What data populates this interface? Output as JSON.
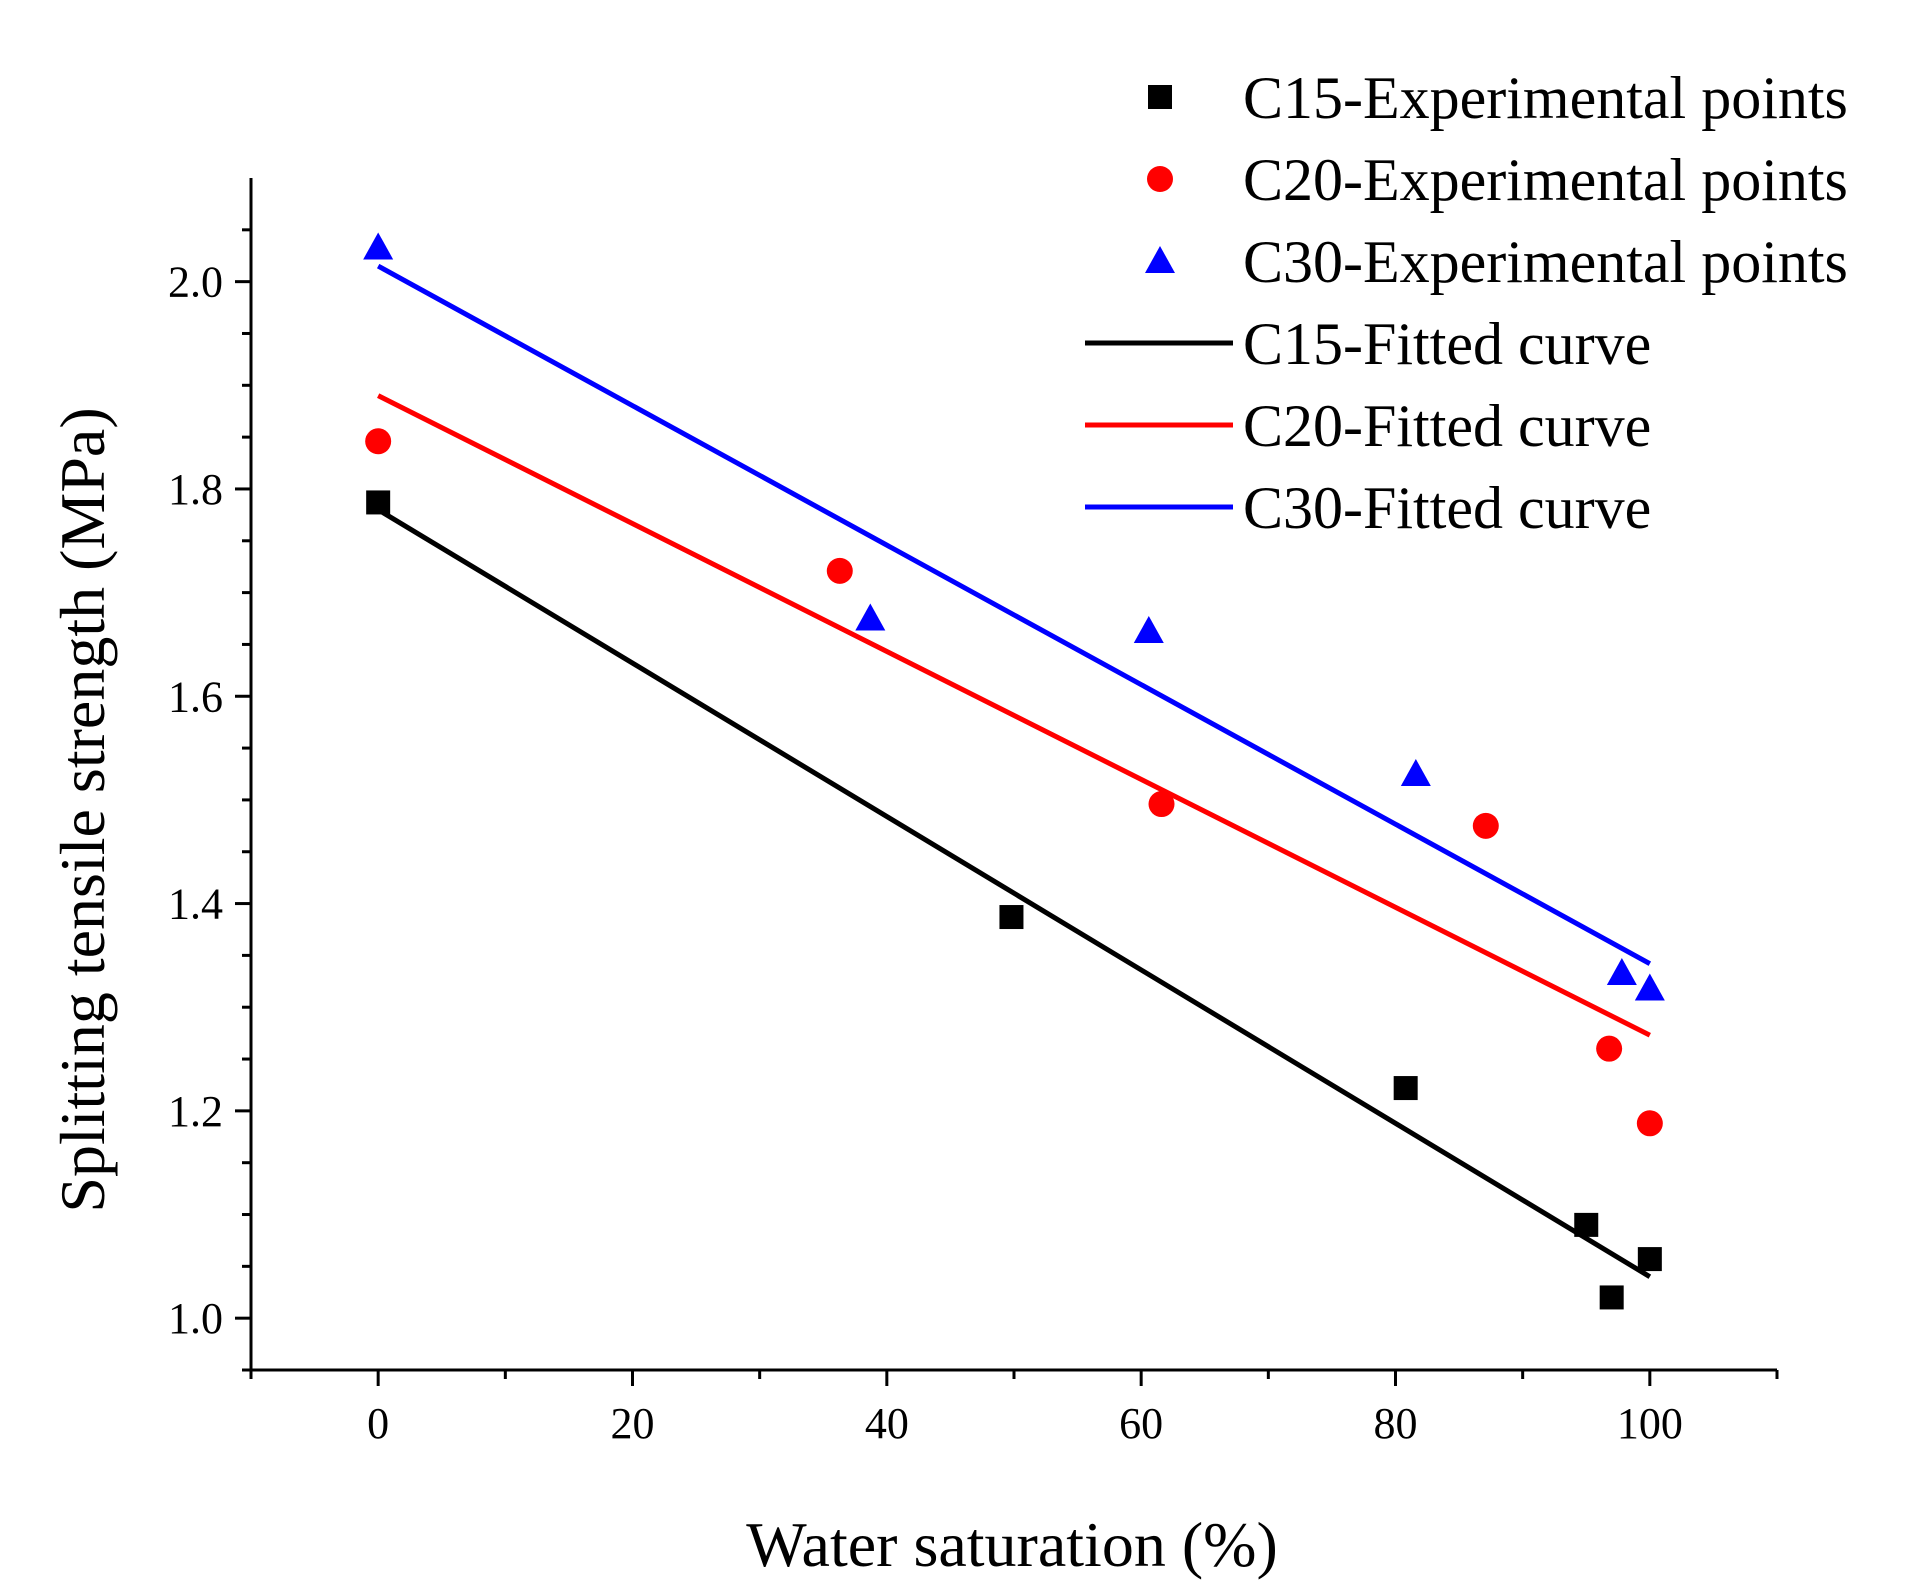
{
  "chart_data": {
    "type": "scatter",
    "xlabel": "Water saturation (%)",
    "ylabel": "Splitting tensile strength (MPa)",
    "xlim": [
      -10,
      110
    ],
    "ylim": [
      0.95,
      2.1
    ],
    "x_ticks": [
      0,
      20,
      40,
      60,
      80,
      100
    ],
    "x_tick_labels": [
      "0",
      "20",
      "40",
      "60",
      "80",
      "100"
    ],
    "y_ticks": [
      1.0,
      1.2,
      1.4,
      1.6,
      1.8,
      2.0
    ],
    "y_tick_labels": [
      "1.0",
      "1.2",
      "1.4",
      "1.6",
      "1.8",
      "2.0"
    ],
    "legend_position": "top-right",
    "series": [
      {
        "name": "C15-Experimental points",
        "kind": "points",
        "marker": "square",
        "color": "#000000",
        "points": [
          [
            0,
            1.787
          ],
          [
            49.8,
            1.387
          ],
          [
            80.8,
            1.222
          ],
          [
            95,
            1.09
          ],
          [
            97,
            1.02
          ],
          [
            100,
            1.057
          ]
        ]
      },
      {
        "name": "C20-Experimental points",
        "kind": "points",
        "marker": "circle",
        "color": "#ff0000",
        "points": [
          [
            0,
            1.846
          ],
          [
            36.3,
            1.721
          ],
          [
            61.6,
            1.496
          ],
          [
            87.1,
            1.475
          ],
          [
            96.8,
            1.26
          ],
          [
            100,
            1.188
          ]
        ]
      },
      {
        "name": "C30-Experimental points",
        "kind": "points",
        "marker": "triangle",
        "color": "#0000ff",
        "points": [
          [
            0,
            2.033
          ],
          [
            38.7,
            1.675
          ],
          [
            60.6,
            1.663
          ],
          [
            81.6,
            1.525
          ],
          [
            97.8,
            1.333
          ],
          [
            100,
            1.318
          ]
        ]
      },
      {
        "name": "C15-Fitted curve",
        "kind": "line",
        "color": "#000000",
        "points": [
          [
            0,
            1.78
          ],
          [
            100,
            1.04
          ]
        ]
      },
      {
        "name": "C20-Fitted curve",
        "kind": "line",
        "color": "#ff0000",
        "points": [
          [
            0,
            1.89
          ],
          [
            100,
            1.273
          ]
        ]
      },
      {
        "name": "C30-Fitted curve",
        "kind": "line",
        "color": "#0000ff",
        "points": [
          [
            0,
            2.015
          ],
          [
            100,
            1.342
          ]
        ]
      }
    ]
  }
}
